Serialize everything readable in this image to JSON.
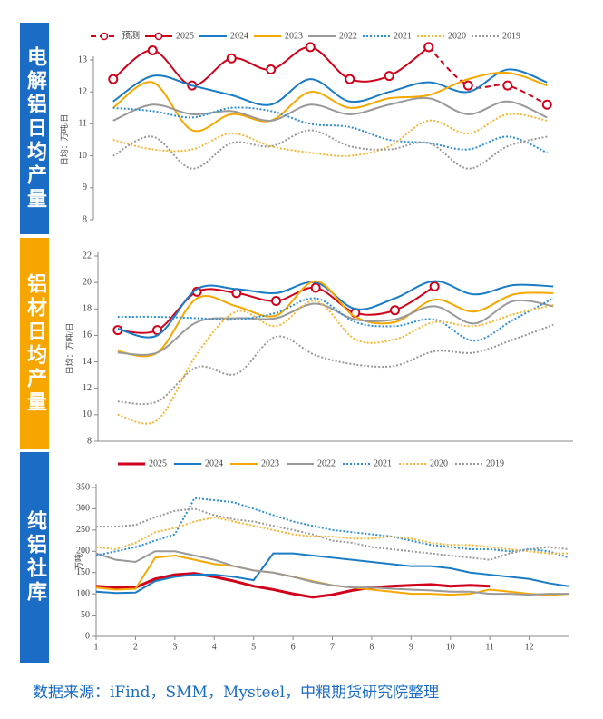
{
  "sections": [
    {
      "label": "电解铝日均产量"
    },
    {
      "label": "铝材日均产量"
    },
    {
      "label": "纯铝社库"
    }
  ],
  "source": "数据来源：iFind，SMM，Mysteel，中粮期货研究院整理",
  "chart_data": [
    {
      "type": "line",
      "smooth": true,
      "ylabel": "日均：万吨/日",
      "categories": [
        null,
        null,
        null,
        null,
        null,
        null,
        null,
        null,
        null,
        null,
        null,
        null
      ],
      "ylim": [
        8,
        13
      ],
      "yticks": [
        8,
        9,
        10,
        11,
        12,
        13
      ],
      "series": [
        {
          "name": "预测",
          "color": "#d0021b",
          "style": "dashed",
          "markers": true,
          "values": [
            null,
            null,
            null,
            null,
            null,
            null,
            null,
            null,
            13.4,
            12.2,
            12.2,
            11.6
          ]
        },
        {
          "name": "2025",
          "color": "#d0021b",
          "style": "solid",
          "markers": true,
          "values": [
            12.4,
            13.3,
            12.2,
            13.05,
            12.7,
            13.4,
            12.4,
            12.5,
            13.4,
            null,
            null,
            null
          ]
        },
        {
          "name": "2024",
          "color": "#1a7cc4",
          "style": "solid",
          "values": [
            11.7,
            12.5,
            12.2,
            11.9,
            11.6,
            12.4,
            11.7,
            12.0,
            12.3,
            12.0,
            12.7,
            12.3
          ]
        },
        {
          "name": "2023",
          "color": "#f5a800",
          "style": "solid",
          "values": [
            11.5,
            12.3,
            10.8,
            11.3,
            11.1,
            12.0,
            11.5,
            11.8,
            11.9,
            12.4,
            12.6,
            12.2
          ]
        },
        {
          "name": "2022",
          "color": "#999999",
          "style": "solid",
          "values": [
            11.1,
            11.6,
            11.3,
            11.4,
            11.1,
            11.6,
            11.3,
            11.6,
            11.8,
            11.3,
            11.7,
            11.2
          ]
        },
        {
          "name": "2021",
          "color": "#2e8fd6",
          "style": "dotted",
          "values": [
            11.5,
            11.4,
            11.2,
            11.5,
            11.4,
            11.0,
            10.9,
            10.5,
            10.4,
            10.2,
            10.6,
            10.1
          ]
        },
        {
          "name": "2020",
          "color": "#f7b733",
          "style": "dotted",
          "values": [
            10.5,
            10.2,
            10.2,
            10.7,
            10.3,
            10.1,
            10.0,
            10.3,
            11.1,
            10.7,
            11.3,
            11.1
          ]
        },
        {
          "name": "2019",
          "color": "#999999",
          "style": "dotted",
          "values": [
            10.0,
            10.6,
            9.6,
            10.4,
            10.3,
            10.8,
            10.3,
            10.2,
            10.4,
            9.6,
            10.3,
            10.6
          ]
        }
      ]
    },
    {
      "type": "line",
      "smooth": true,
      "ylabel": "日均：万吨/日",
      "categories": [
        null,
        null,
        null,
        null,
        null,
        null,
        null,
        null,
        null,
        null,
        null,
        null
      ],
      "ylim": [
        8,
        22
      ],
      "yticks": [
        8,
        10,
        12,
        14,
        16,
        18,
        20,
        22
      ],
      "series": [
        {
          "color": "#d0021b",
          "style": "solid",
          "markers": true,
          "values": [
            16.4,
            16.4,
            19.3,
            19.2,
            18.6,
            19.6,
            17.7,
            17.9,
            19.7,
            null,
            null,
            null
          ]
        },
        {
          "color": "#1a7cc4",
          "style": "solid",
          "values": [
            16.5,
            16.0,
            19.5,
            19.5,
            19.2,
            20.0,
            18.0,
            18.8,
            20.1,
            19.1,
            19.8,
            19.7
          ]
        },
        {
          "color": "#f5a800",
          "style": "solid",
          "values": [
            14.8,
            14.7,
            18.8,
            18.2,
            17.5,
            20.1,
            17.4,
            17.0,
            18.7,
            17.8,
            19.1,
            19.2
          ]
        },
        {
          "color": "#999999",
          "style": "solid",
          "values": [
            14.7,
            14.7,
            17.0,
            17.3,
            17.3,
            18.4,
            17.2,
            17.2,
            18.2,
            16.9,
            18.6,
            18.2
          ]
        },
        {
          "color": "#2e8fd6",
          "style": "dotted",
          "values": [
            17.4,
            17.4,
            17.3,
            17.2,
            17.7,
            18.8,
            17.0,
            16.7,
            17.2,
            15.6,
            17.2,
            18.8
          ]
        },
        {
          "color": "#f7b733",
          "style": "dotted",
          "values": [
            10.0,
            9.6,
            14.6,
            17.8,
            16.7,
            18.6,
            15.7,
            15.7,
            17.0,
            16.7,
            17.6,
            18.3
          ]
        },
        {
          "color": "#999999",
          "style": "dotted",
          "values": [
            11.0,
            11.0,
            13.6,
            13.1,
            15.9,
            14.5,
            13.8,
            13.7,
            14.8,
            14.7,
            15.7,
            16.8
          ]
        }
      ]
    },
    {
      "type": "line",
      "smooth": false,
      "ylabel": "万吨",
      "x": [
        1,
        1.5,
        2,
        2.5,
        3,
        3.5,
        4,
        4.5,
        5,
        5.5,
        6,
        6.5,
        7,
        7.5,
        8,
        8.5,
        9,
        9.5,
        10,
        10.5,
        11,
        11.5,
        12,
        12.5,
        13
      ],
      "xlim": [
        1,
        13
      ],
      "xticks": [
        1,
        2,
        3,
        4,
        5,
        6,
        7,
        8,
        9,
        10,
        11,
        12
      ],
      "ylim": [
        0,
        350
      ],
      "yticks": [
        0,
        50,
        100,
        150,
        200,
        250,
        300,
        350
      ],
      "series": [
        {
          "name": "2025",
          "color": "#d0021b",
          "style": "solid",
          "width": 3,
          "values": [
            118,
            115,
            115,
            135,
            145,
            148,
            140,
            130,
            118,
            110,
            100,
            92,
            98,
            108,
            115,
            118,
            120,
            122,
            118,
            120,
            118,
            null,
            null,
            null,
            null
          ]
        },
        {
          "name": "2024",
          "color": "#1a7cc4",
          "style": "solid",
          "values": [
            105,
            102,
            103,
            130,
            140,
            145,
            145,
            140,
            132,
            195,
            195,
            190,
            185,
            180,
            175,
            170,
            165,
            165,
            160,
            150,
            145,
            140,
            135,
            125,
            118
          ]
        },
        {
          "name": "2023",
          "color": "#f5a800",
          "style": "solid",
          "values": [
            115,
            110,
            112,
            185,
            190,
            180,
            170,
            165,
            155,
            150,
            140,
            130,
            120,
            115,
            110,
            105,
            100,
            100,
            98,
            100,
            110,
            105,
            100,
            97,
            100
          ]
        },
        {
          "name": "2022",
          "color": "#999999",
          "style": "solid",
          "values": [
            195,
            180,
            175,
            200,
            200,
            190,
            180,
            165,
            155,
            150,
            140,
            128,
            120,
            115,
            115,
            112,
            110,
            108,
            105,
            105,
            100,
            100,
            98,
            100,
            100
          ]
        },
        {
          "name": "2021",
          "color": "#2e8fd6",
          "style": "dotted",
          "values": [
            190,
            200,
            210,
            225,
            240,
            325,
            320,
            315,
            300,
            285,
            270,
            260,
            250,
            245,
            240,
            235,
            225,
            215,
            210,
            205,
            205,
            200,
            205,
            200,
            185
          ]
        },
        {
          "name": "2020",
          "color": "#f7b733",
          "style": "dotted",
          "values": [
            210,
            205,
            220,
            245,
            255,
            270,
            280,
            270,
            260,
            250,
            240,
            235,
            235,
            230,
            230,
            235,
            230,
            220,
            215,
            215,
            210,
            205,
            200,
            195,
            195
          ]
        },
        {
          "name": "2019",
          "color": "#999999",
          "style": "dotted",
          "values": [
            258,
            258,
            262,
            280,
            295,
            300,
            285,
            275,
            270,
            260,
            250,
            240,
            225,
            220,
            210,
            205,
            200,
            195,
            190,
            185,
            180,
            195,
            205,
            210,
            205
          ]
        }
      ]
    }
  ]
}
